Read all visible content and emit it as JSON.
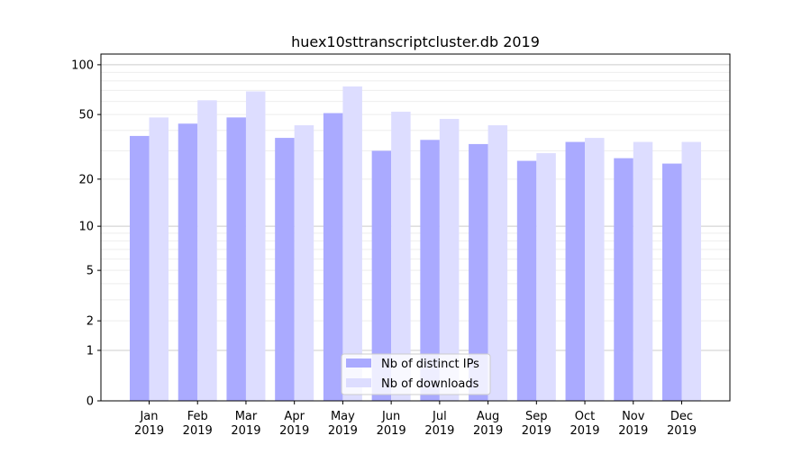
{
  "chart_data": {
    "type": "bar",
    "title": "huex10sttranscriptcluster.db 2019",
    "xlabel": "",
    "ylabel": "",
    "yscale": "log10(1+y)",
    "ylim": [
      0,
      116
    ],
    "yticks": [
      0,
      1,
      2,
      5,
      10,
      20,
      50,
      100
    ],
    "ytick_labels": [
      "0",
      "1",
      "2",
      "5",
      "10",
      "20",
      "50",
      "100"
    ],
    "grid": true,
    "legend_position": "bottom-center",
    "categories": [
      "Jan\n2019",
      "Feb\n2019",
      "Mar\n2019",
      "Apr\n2019",
      "May\n2019",
      "Jun\n2019",
      "Jul\n2019",
      "Aug\n2019",
      "Sep\n2019",
      "Oct\n2019",
      "Nov\n2019",
      "Dec\n2019"
    ],
    "category_labels": [
      [
        "Jan",
        "2019"
      ],
      [
        "Feb",
        "2019"
      ],
      [
        "Mar",
        "2019"
      ],
      [
        "Apr",
        "2019"
      ],
      [
        "May",
        "2019"
      ],
      [
        "Jun",
        "2019"
      ],
      [
        "Jul",
        "2019"
      ],
      [
        "Aug",
        "2019"
      ],
      [
        "Sep",
        "2019"
      ],
      [
        "Oct",
        "2019"
      ],
      [
        "Nov",
        "2019"
      ],
      [
        "Dec",
        "2019"
      ]
    ],
    "series": [
      {
        "name": "Nb of distinct IPs",
        "color": "#aaaaff",
        "values": [
          37,
          44,
          48,
          36,
          51,
          30,
          35,
          33,
          26,
          34,
          27,
          25
        ]
      },
      {
        "name": "Nb of downloads",
        "color": "#ddddff",
        "values": [
          48,
          61,
          69,
          43,
          74,
          52,
          47,
          43,
          29,
          36,
          34,
          34
        ]
      }
    ]
  }
}
